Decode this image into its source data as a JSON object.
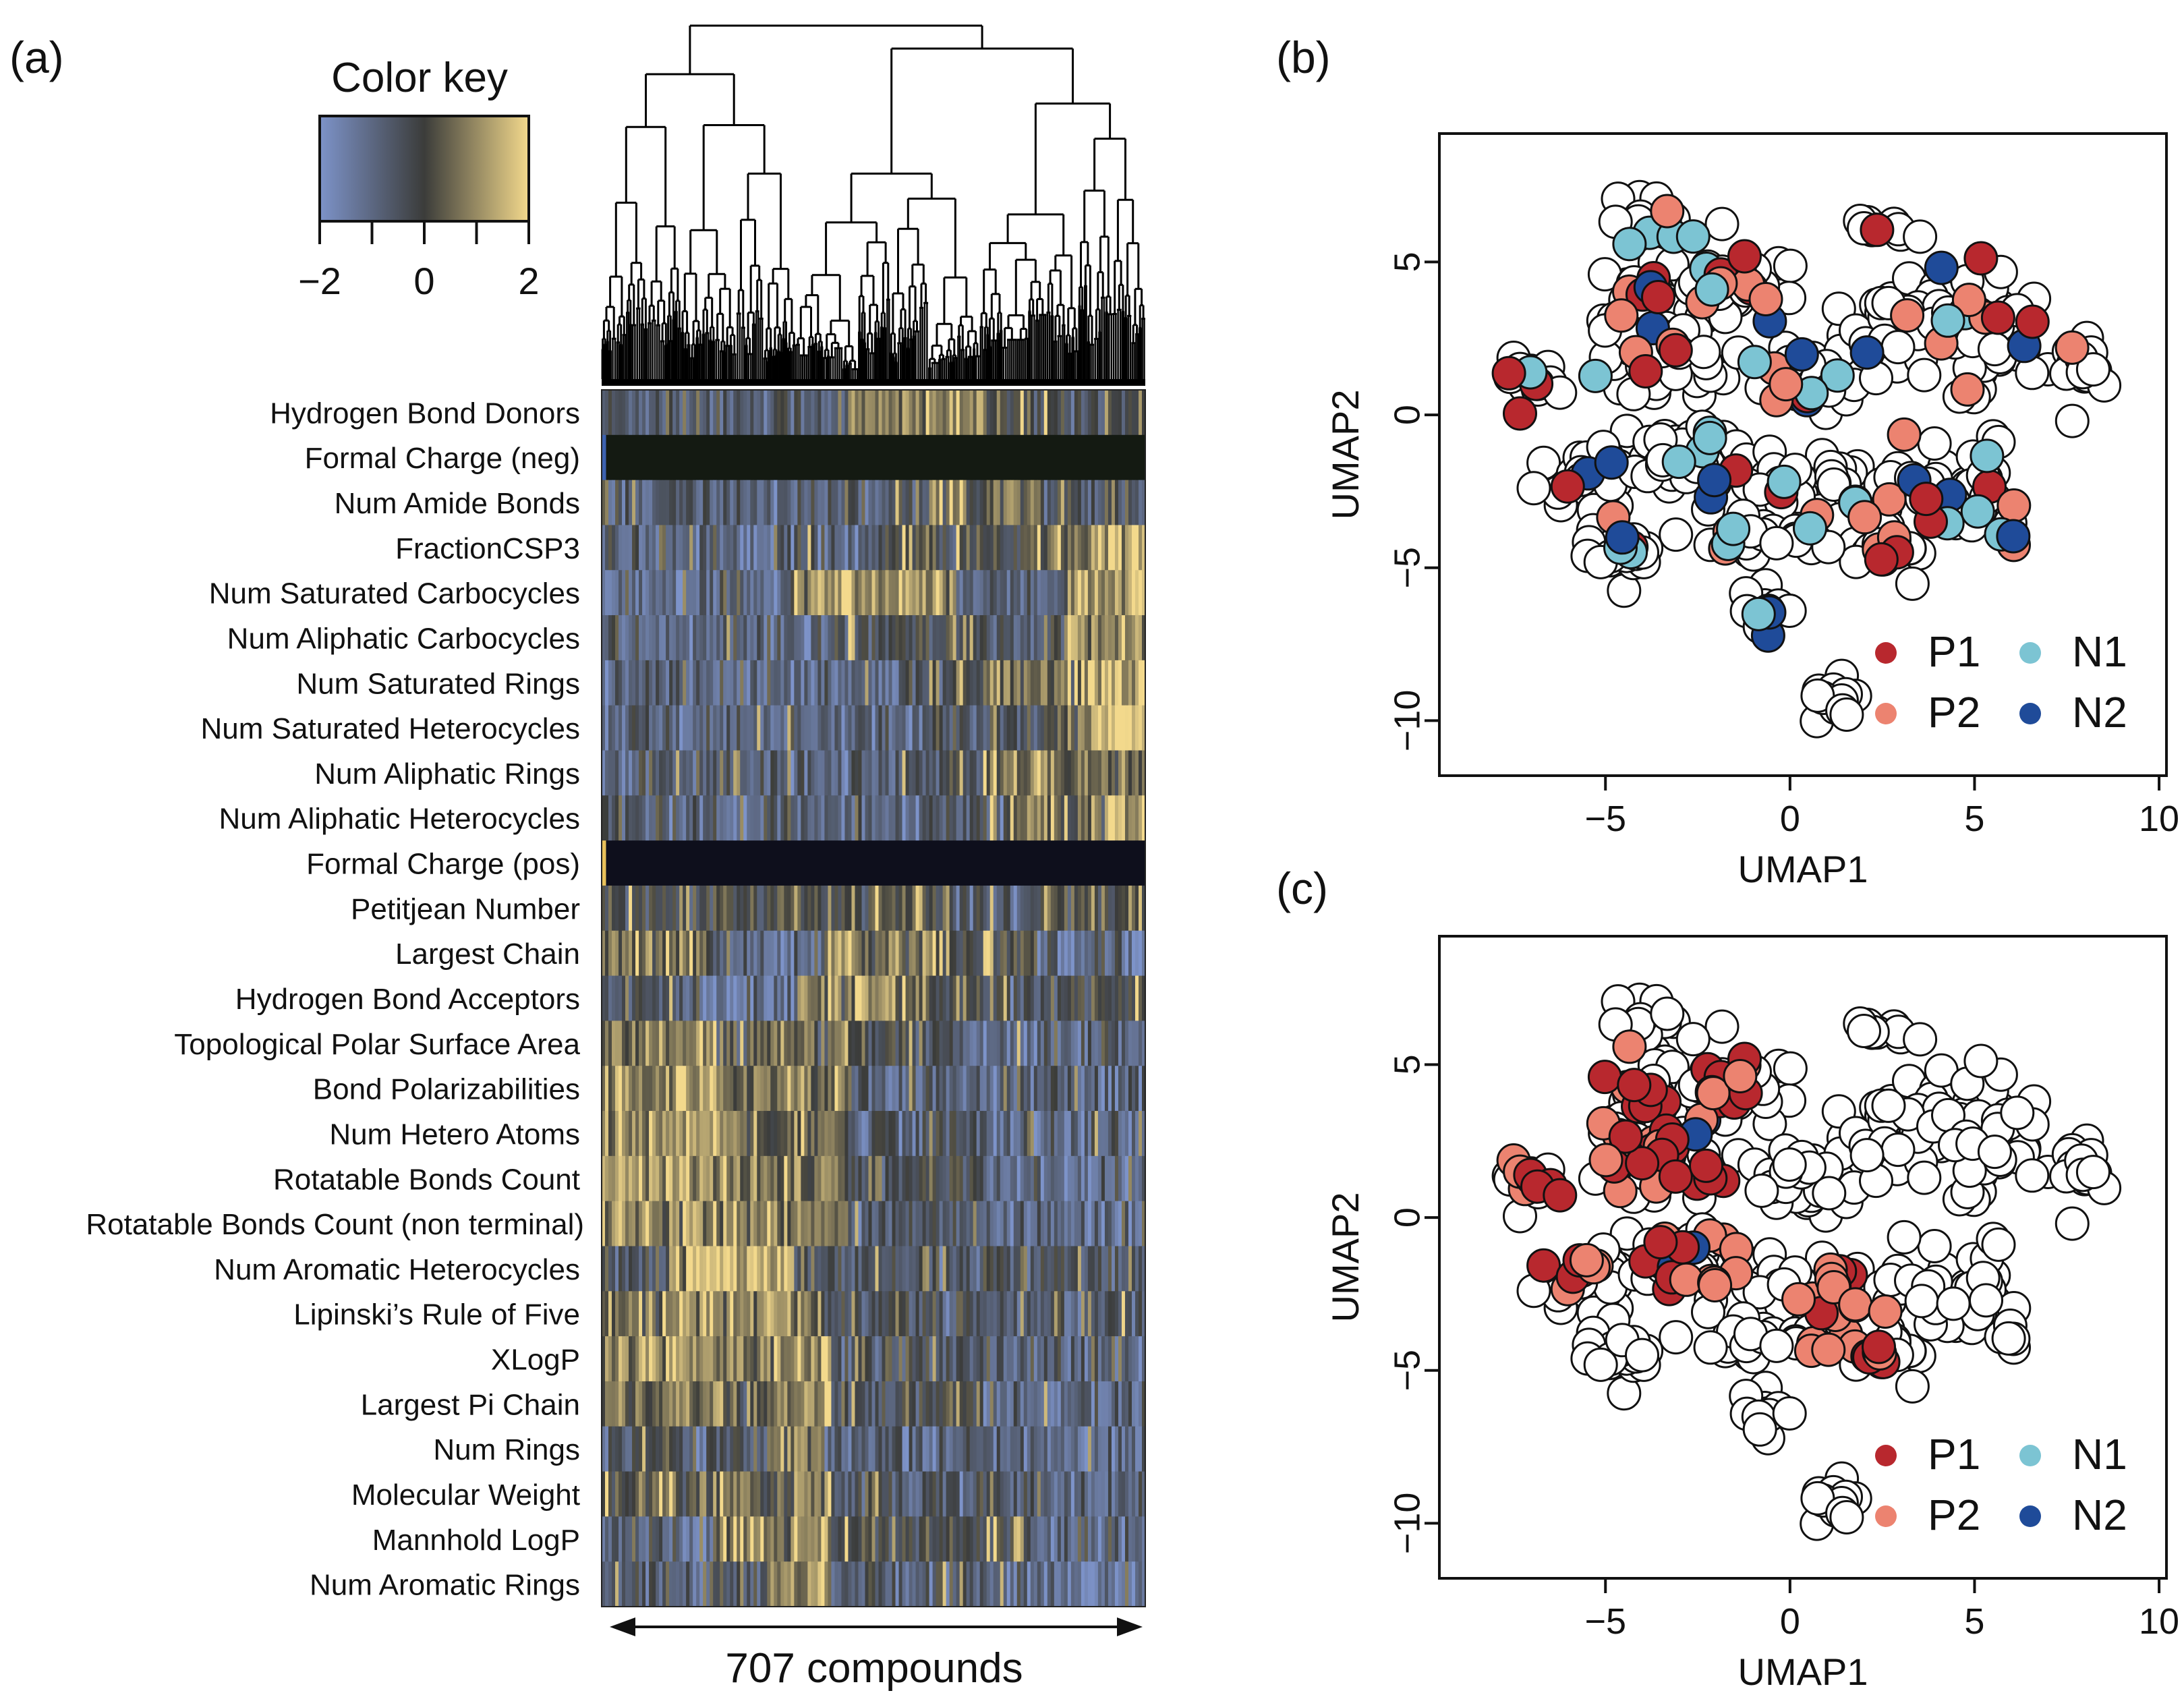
{
  "panel_labels": {
    "a": "(a)",
    "b": "(b)",
    "c": "(c)"
  },
  "chart_data": [
    {
      "type": "heatmap",
      "panel": "(a)",
      "color_key": {
        "title": "Color key",
        "range": [
          -2,
          2
        ],
        "ticks": [
          "−2",
          "0",
          "2"
        ],
        "colors": {
          "low": "#7d93c9",
          "mid": "#3b3c3a",
          "high": "#f3d98c"
        }
      },
      "rows": [
        "Hydrogen Bond Donors",
        "Formal Charge (neg)",
        "Num Amide Bonds",
        "FractionCSP3",
        "Num Saturated Carbocycles",
        "Num Aliphatic Carbocycles",
        "Num Saturated Rings",
        "Num Saturated Heterocycles",
        "Num Aliphatic Rings",
        "Num Aliphatic Heterocycles",
        "Formal Charge (pos)",
        "Petitjean Number",
        "Largest Chain",
        "Hydrogen Bond Acceptors",
        "Topological Polar Surface Area",
        "Bond Polarizabilities",
        "Num Hetero Atoms",
        "Rotatable Bonds Count",
        "Rotatable Bonds Count (non terminal)",
        "Num Aromatic Heterocycles",
        "Lipinski’s Rule of Five",
        "XLogP",
        "Largest Pi Chain",
        "Num Rings",
        "Molecular Weight",
        "Mannhold LogP",
        "Num Aromatic Rings"
      ],
      "n_columns": 707,
      "columns_label": "707 compounds",
      "dendrogram": "column clustering (hierarchical)"
    },
    {
      "type": "scatter",
      "panel": "(b)",
      "xlabel": "UMAP1",
      "ylabel": "UMAP2",
      "xlim": [
        -9.5,
        10.2
      ],
      "ylim": [
        -11.8,
        9.2
      ],
      "xticks": [
        -5,
        0,
        5,
        10
      ],
      "yticks": [
        -10,
        -5,
        0,
        5
      ],
      "xtick_labels": [
        "−5",
        "0",
        "5",
        "10"
      ],
      "ytick_labels": [
        "−10",
        "−5",
        "0",
        "5"
      ],
      "series": [
        {
          "name": "P1",
          "color": "#b8282e"
        },
        {
          "name": "P2",
          "color": "#ec8370"
        },
        {
          "name": "N1",
          "color": "#7cc4d3"
        },
        {
          "name": "N2",
          "color": "#1f4b99"
        }
      ],
      "other_points_color": "#ffffff"
    },
    {
      "type": "scatter",
      "panel": "(c)",
      "xlabel": "UMAP1",
      "ylabel": "UMAP2",
      "xlim": [
        -9.5,
        10.2
      ],
      "ylim": [
        -11.8,
        9.2
      ],
      "xticks": [
        -5,
        0,
        5,
        10
      ],
      "yticks": [
        -10,
        -5,
        0,
        5
      ],
      "xtick_labels": [
        "−5",
        "0",
        "5",
        "10"
      ],
      "ytick_labels": [
        "−10",
        "−5",
        "0",
        "5"
      ],
      "series": [
        {
          "name": "P1",
          "color": "#b8282e"
        },
        {
          "name": "P2",
          "color": "#ec8370"
        },
        {
          "name": "N1",
          "color": "#7cc4d3"
        },
        {
          "name": "N2",
          "color": "#1f4b99"
        }
      ],
      "other_points_color": "#ffffff"
    }
  ]
}
